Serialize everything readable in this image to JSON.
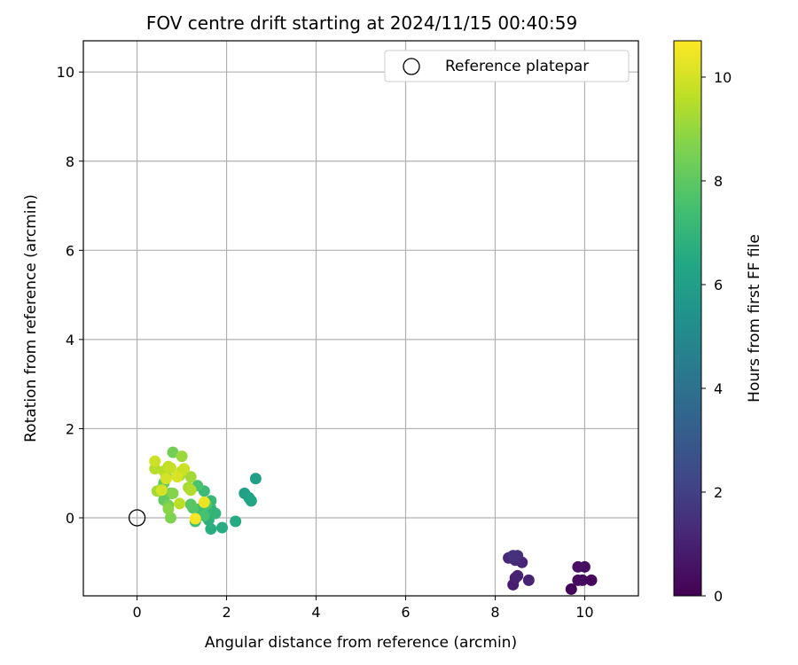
{
  "chart_data": {
    "type": "scatter",
    "title": "FOV centre drift starting at 2024/11/15 00:40:59",
    "xlabel": "Angular distance from reference (arcmin)",
    "ylabel": "Rotation from reference (arcmin)",
    "xlim": [
      -1.2,
      11.2
    ],
    "ylim": [
      -1.75,
      10.7
    ],
    "xticks": [
      0,
      2,
      4,
      6,
      8,
      10
    ],
    "yticks": [
      0,
      2,
      4,
      6,
      8,
      10
    ],
    "grid": true,
    "colormap": "viridis",
    "colorbar": {
      "label": "Hours from first FF file",
      "range": [
        0,
        10.7
      ],
      "ticks": [
        0,
        2,
        4,
        6,
        8,
        10
      ]
    },
    "legend": {
      "placement": "top-right",
      "entries": [
        {
          "label": "Reference platepar",
          "marker": "open-circle"
        }
      ]
    },
    "reference_point": {
      "x": 0,
      "y": 0
    },
    "points": [
      {
        "x": 9.7,
        "y": -1.6,
        "hours": 0.1
      },
      {
        "x": 10.15,
        "y": -1.4,
        "hours": 0.2
      },
      {
        "x": 9.95,
        "y": -1.4,
        "hours": 0.3
      },
      {
        "x": 9.85,
        "y": -1.4,
        "hours": 0.35
      },
      {
        "x": 10.0,
        "y": -1.1,
        "hours": 0.4
      },
      {
        "x": 9.85,
        "y": -1.1,
        "hours": 0.5
      },
      {
        "x": 8.4,
        "y": -1.5,
        "hours": 0.8
      },
      {
        "x": 8.45,
        "y": -1.35,
        "hours": 0.9
      },
      {
        "x": 8.5,
        "y": -1.3,
        "hours": 1.0
      },
      {
        "x": 8.75,
        "y": -1.4,
        "hours": 1.05
      },
      {
        "x": 8.6,
        "y": -1.0,
        "hours": 1.1
      },
      {
        "x": 8.3,
        "y": -0.9,
        "hours": 1.2
      },
      {
        "x": 8.45,
        "y": -0.95,
        "hours": 1.3
      },
      {
        "x": 8.5,
        "y": -0.85,
        "hours": 1.4
      },
      {
        "x": 8.4,
        "y": -0.85,
        "hours": 1.5
      },
      {
        "x": 2.65,
        "y": 0.88,
        "hours": 6.0
      },
      {
        "x": 2.4,
        "y": 0.55,
        "hours": 6.1
      },
      {
        "x": 2.5,
        "y": 0.45,
        "hours": 6.2
      },
      {
        "x": 2.55,
        "y": 0.38,
        "hours": 6.3
      },
      {
        "x": 2.2,
        "y": -0.08,
        "hours": 6.5
      },
      {
        "x": 1.9,
        "y": -0.22,
        "hours": 6.6
      },
      {
        "x": 1.65,
        "y": -0.25,
        "hours": 6.7
      },
      {
        "x": 1.6,
        "y": -0.05,
        "hours": 6.8
      },
      {
        "x": 1.65,
        "y": 0.2,
        "hours": 6.9
      },
      {
        "x": 1.75,
        "y": 0.1,
        "hours": 7.0
      },
      {
        "x": 1.65,
        "y": 0.38,
        "hours": 7.1
      },
      {
        "x": 1.5,
        "y": 0.6,
        "hours": 7.2
      },
      {
        "x": 1.4,
        "y": 0.2,
        "hours": 7.3
      },
      {
        "x": 1.3,
        "y": -0.08,
        "hours": 7.4
      },
      {
        "x": 1.5,
        "y": 0.05,
        "hours": 7.5
      },
      {
        "x": 1.35,
        "y": 0.72,
        "hours": 7.6
      },
      {
        "x": 1.55,
        "y": 0.3,
        "hours": 7.7
      },
      {
        "x": 1.25,
        "y": 0.22,
        "hours": 7.8
      },
      {
        "x": 1.2,
        "y": 0.3,
        "hours": 7.9
      },
      {
        "x": 0.6,
        "y": 0.78,
        "hours": 8.0
      },
      {
        "x": 0.6,
        "y": 0.4,
        "hours": 8.1
      },
      {
        "x": 0.75,
        "y": 0.55,
        "hours": 8.2
      },
      {
        "x": 0.55,
        "y": 0.65,
        "hours": 8.3
      },
      {
        "x": 0.8,
        "y": 1.47,
        "hours": 8.4
      },
      {
        "x": 0.7,
        "y": 0.28,
        "hours": 8.5
      },
      {
        "x": 0.75,
        "y": 0.0,
        "hours": 8.6
      },
      {
        "x": 0.8,
        "y": 0.55,
        "hours": 8.7
      },
      {
        "x": 0.7,
        "y": 0.2,
        "hours": 8.8
      },
      {
        "x": 0.65,
        "y": 0.95,
        "hours": 8.9
      },
      {
        "x": 0.95,
        "y": 0.95,
        "hours": 9.0
      },
      {
        "x": 1.0,
        "y": 1.38,
        "hours": 9.1
      },
      {
        "x": 1.2,
        "y": 0.92,
        "hours": 9.2
      },
      {
        "x": 0.45,
        "y": 0.6,
        "hours": 9.25
      },
      {
        "x": 1.15,
        "y": 0.68,
        "hours": 9.3
      },
      {
        "x": 1.2,
        "y": 0.62,
        "hours": 9.4
      },
      {
        "x": 0.4,
        "y": 1.1,
        "hours": 9.5
      },
      {
        "x": 0.6,
        "y": 1.05,
        "hours": 9.55
      },
      {
        "x": 0.95,
        "y": 0.32,
        "hours": 9.6
      },
      {
        "x": 0.7,
        "y": 1.15,
        "hours": 9.7
      },
      {
        "x": 0.75,
        "y": 1.12,
        "hours": 9.75
      },
      {
        "x": 1.0,
        "y": 1.05,
        "hours": 9.8
      },
      {
        "x": 1.05,
        "y": 1.1,
        "hours": 9.85
      },
      {
        "x": 0.4,
        "y": 1.27,
        "hours": 9.9
      },
      {
        "x": 0.55,
        "y": 0.62,
        "hours": 10.0
      },
      {
        "x": 0.65,
        "y": 0.88,
        "hours": 10.05
      },
      {
        "x": 0.9,
        "y": 0.92,
        "hours": 10.1
      },
      {
        "x": 1.5,
        "y": 0.35,
        "hours": 10.4
      },
      {
        "x": 1.3,
        "y": -0.02,
        "hours": 10.6
      }
    ]
  }
}
